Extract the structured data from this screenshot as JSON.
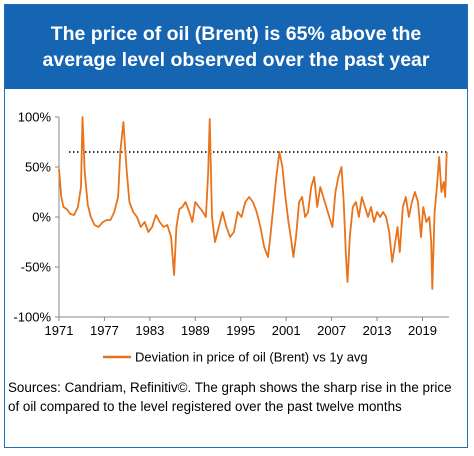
{
  "header": {
    "title": "The price of oil (Brent) is 65% above the average level observed over the past year"
  },
  "sources": {
    "text": "Sources: Candriam, Refinitiv©. The graph shows the sharp rise in the price of oil compared to the level registered over the past twelve months"
  },
  "colors": {
    "header_bg": "#1565b3",
    "series": "#e8731a",
    "reference_line": "#000000"
  },
  "chart_data": {
    "type": "line",
    "title": "",
    "xlabel": "",
    "ylabel": "",
    "xlim": [
      1971,
      2022.5
    ],
    "ylim": [
      -100,
      100
    ],
    "x_ticks": [
      1971,
      1977,
      1983,
      1989,
      1995,
      2001,
      2007,
      2013,
      2019
    ],
    "x_tick_labels": [
      "1971",
      "1977",
      "1983",
      "1989",
      "1995",
      "2001",
      "2007",
      "2013",
      "2019"
    ],
    "y_ticks": [
      -100,
      -50,
      0,
      50,
      100
    ],
    "y_tick_labels": [
      "-100%",
      "-50%",
      "0%",
      "50%",
      "100%"
    ],
    "grid": false,
    "legend_position": "bottom",
    "reference_line": {
      "y": 65,
      "style": "dotted"
    },
    "series": [
      {
        "name": "Deviation in price of oil (Brent) vs 1y avg",
        "x": [
          1971,
          1971.3,
          1971.6,
          1972,
          1972.5,
          1973,
          1973.5,
          1973.9,
          1974.1,
          1974.4,
          1974.8,
          1975.2,
          1975.7,
          1976.2,
          1976.8,
          1977.3,
          1977.8,
          1978.3,
          1978.8,
          1979.1,
          1979.5,
          1979.9,
          1980.3,
          1980.8,
          1981.3,
          1981.8,
          1982.3,
          1982.8,
          1983.3,
          1983.8,
          1984.3,
          1984.8,
          1985.3,
          1985.8,
          1986.2,
          1986.5,
          1986.9,
          1987.3,
          1987.7,
          1988.2,
          1988.6,
          1989.0,
          1989.5,
          1990.0,
          1990.4,
          1990.7,
          1990.9,
          1991.2,
          1991.6,
          1992.1,
          1992.6,
          1993.1,
          1993.6,
          1994.1,
          1994.6,
          1995.1,
          1995.6,
          1996.1,
          1996.6,
          1997.1,
          1997.6,
          1998.1,
          1998.6,
          1998.9,
          1999.3,
          1999.7,
          2000.1,
          2000.5,
          2000.9,
          2001.3,
          2001.7,
          2001.95,
          2002.3,
          2002.7,
          2003.1,
          2003.5,
          2003.9,
          2004.3,
          2004.7,
          2005.1,
          2005.5,
          2005.9,
          2006.3,
          2006.7,
          2007.1,
          2007.5,
          2007.9,
          2008.3,
          2008.6,
          2008.9,
          2009.1,
          2009.4,
          2009.8,
          2010.2,
          2010.6,
          2011.0,
          2011.4,
          2011.8,
          2012.2,
          2012.6,
          2013.0,
          2013.4,
          2013.8,
          2014.2,
          2014.6,
          2015.0,
          2015.3,
          2015.7,
          2016.0,
          2016.4,
          2016.8,
          2017.2,
          2017.6,
          2018.0,
          2018.4,
          2018.8,
          2019.1,
          2019.5,
          2019.9,
          2020.15,
          2020.3,
          2020.6,
          2020.9,
          2021.2,
          2021.5,
          2021.8,
          2022.0,
          2022.2
        ],
        "values": [
          48,
          20,
          10,
          8,
          3,
          2,
          10,
          30,
          100,
          45,
          12,
          0,
          -8,
          -10,
          -5,
          -3,
          -3,
          5,
          20,
          65,
          95,
          50,
          15,
          5,
          0,
          -10,
          -5,
          -15,
          -10,
          2,
          -5,
          -10,
          -8,
          -20,
          -58,
          -10,
          8,
          10,
          15,
          5,
          -5,
          15,
          10,
          5,
          0,
          45,
          98,
          0,
          -25,
          -10,
          5,
          -10,
          -20,
          -15,
          5,
          0,
          15,
          20,
          15,
          5,
          -10,
          -30,
          -40,
          -20,
          10,
          40,
          65,
          50,
          20,
          -5,
          -25,
          -40,
          -20,
          15,
          20,
          0,
          5,
          30,
          40,
          10,
          30,
          20,
          10,
          0,
          -10,
          25,
          40,
          50,
          15,
          -40,
          -65,
          -20,
          10,
          15,
          0,
          20,
          10,
          0,
          10,
          -5,
          5,
          0,
          5,
          0,
          -15,
          -45,
          -30,
          -10,
          -35,
          10,
          20,
          0,
          15,
          25,
          15,
          -20,
          10,
          -5,
          0,
          -25,
          -72,
          5,
          30,
          60,
          25,
          35,
          20,
          65
        ]
      }
    ]
  }
}
